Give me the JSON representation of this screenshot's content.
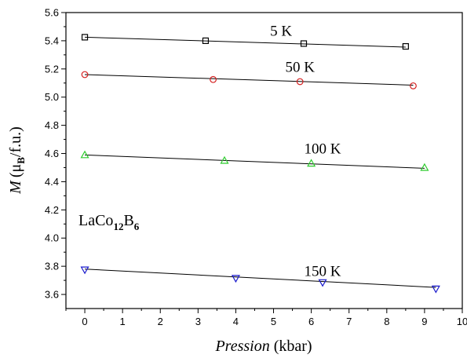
{
  "chart_data": {
    "type": "scatter",
    "xlabel_italic": "Pression",
    "xlabel_unit": "(kbar)",
    "ylabel_italic": "M",
    "ylabel_open": "(μ",
    "ylabel_sub": "B",
    "ylabel_close": "/f.u.)",
    "xlim": [
      -0.5,
      10
    ],
    "ylim": [
      3.5,
      5.6
    ],
    "x_ticks": [
      0,
      1,
      2,
      3,
      4,
      5,
      6,
      7,
      8,
      9,
      10
    ],
    "x_tick_labels": [
      "0",
      "1",
      "2",
      "3",
      "4",
      "5",
      "6",
      "7",
      "8",
      "9",
      "10"
    ],
    "y_ticks": [
      3.6,
      3.8,
      4.0,
      4.2,
      4.4,
      4.6,
      4.8,
      5.0,
      5.2,
      5.4,
      5.6
    ],
    "y_tick_labels": [
      "3.6",
      "3.8",
      "4.0",
      "4.2",
      "4.4",
      "4.6",
      "4.8",
      "5.0",
      "5.2",
      "5.4",
      "5.6"
    ],
    "annotation": {
      "main": "LaCo",
      "sub1": "12",
      "mid": "B",
      "sub2": "6"
    },
    "series": [
      {
        "name": "5 K",
        "marker": "square",
        "color": "#000000",
        "x": [
          0,
          3.2,
          5.8,
          8.5
        ],
        "y": [
          5.425,
          5.4,
          5.38,
          5.36
        ],
        "fit": [
          [
            0,
            5.425
          ],
          [
            8.5,
            5.355
          ]
        ],
        "label_at": [
          5.2,
          5.435
        ]
      },
      {
        "name": "50 K",
        "marker": "circle",
        "color": "#d42020",
        "x": [
          0,
          3.4,
          5.7,
          8.7
        ],
        "y": [
          5.16,
          5.125,
          5.11,
          5.08
        ],
        "fit": [
          [
            0,
            5.16
          ],
          [
            8.7,
            5.085
          ]
        ],
        "label_at": [
          5.7,
          5.18
        ]
      },
      {
        "name": "100 K",
        "marker": "triangle-up",
        "color": "#2ecc2e",
        "x": [
          0,
          3.7,
          6.0,
          9.0
        ],
        "y": [
          4.59,
          4.55,
          4.53,
          4.5
        ],
        "fit": [
          [
            0,
            4.59
          ],
          [
            9.0,
            4.495
          ]
        ],
        "label_at": [
          6.3,
          4.6
        ]
      },
      {
        "name": "150 K",
        "marker": "triangle-down",
        "color": "#1a1acc",
        "x": [
          0,
          4.0,
          6.3,
          9.3
        ],
        "y": [
          3.775,
          3.715,
          3.685,
          3.64
        ],
        "fit": [
          [
            0,
            3.78
          ],
          [
            9.3,
            3.65
          ]
        ],
        "label_at": [
          6.3,
          3.73
        ]
      }
    ]
  }
}
